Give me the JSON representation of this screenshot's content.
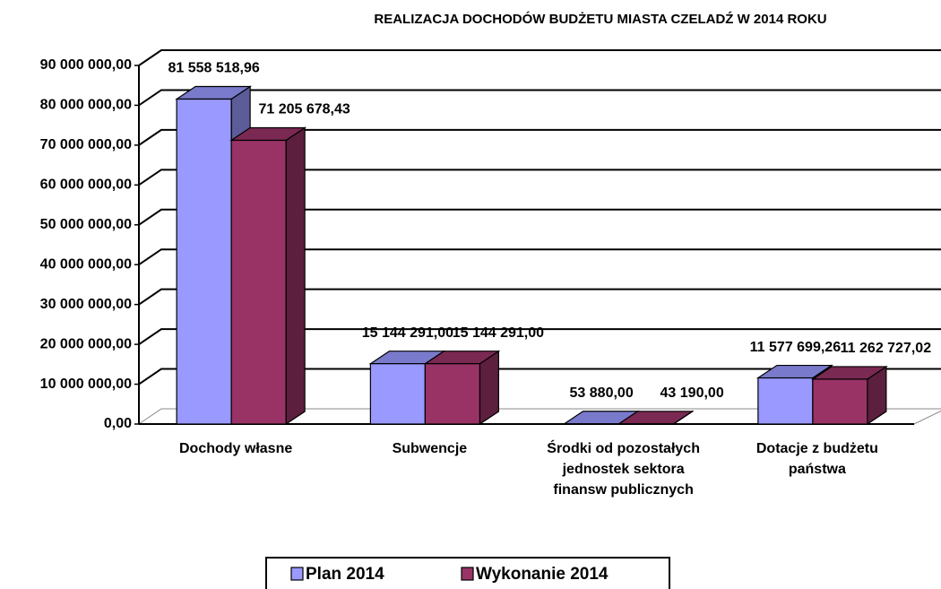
{
  "chart_data": {
    "type": "bar3d",
    "title": "REALIZACJA DOCHODÓW BUDŻETU MIASTA CZELADŹ W 2014 ROKU",
    "categories": [
      "Dochody własne",
      "Subwencje",
      "Środki od pozostałych jednostek sektora finansw publicznych",
      "Dotacje z budżetu państwa"
    ],
    "series": [
      {
        "name": "Plan 2014",
        "color": "#9999ff",
        "values": [
          81558518.96,
          15144291,
          53880,
          11577699.26
        ],
        "value_labels": [
          "81 558 518,96",
          "15 144 291,00",
          "53 880,00",
          "11 577 699,26"
        ]
      },
      {
        "name": "Wykonanie 2014",
        "color": "#993366",
        "values": [
          71205678.43,
          15144291,
          43190,
          11262727.02
        ],
        "value_labels": [
          "71 205 678,43",
          "15 144 291,00",
          "43 190,00",
          "11 262 727,02"
        ]
      }
    ],
    "ylim": [
      0,
      90000000
    ],
    "yticks": [
      {
        "value": 0,
        "label": "0,00"
      },
      {
        "value": 10000000,
        "label": "10 000 000,00"
      },
      {
        "value": 20000000,
        "label": "20 000 000,00"
      },
      {
        "value": 30000000,
        "label": "30 000 000,00"
      },
      {
        "value": 40000000,
        "label": "40 000 000,00"
      },
      {
        "value": 50000000,
        "label": "50 000 000,00"
      },
      {
        "value": 60000000,
        "label": "60 000 000,00"
      },
      {
        "value": 70000000,
        "label": "70 000 000,00"
      },
      {
        "value": 80000000,
        "label": "80 000 000,00"
      },
      {
        "value": 90000000,
        "label": "90 000 000,00"
      }
    ],
    "grid": true,
    "legend": "bottom"
  }
}
